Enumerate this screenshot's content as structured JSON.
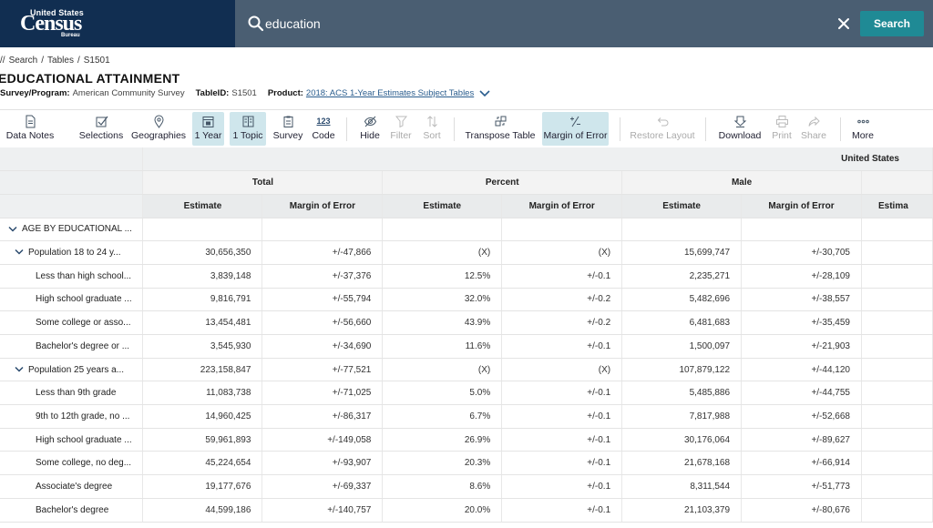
{
  "header": {
    "logo": {
      "line1": "United States",
      "line2": "Census",
      "line3": "Bureau"
    },
    "search_value": "education",
    "search_button": "Search",
    "colors": {
      "logo_bg": "#112e51",
      "search_bg": "#4a5e72",
      "search_button": "#1f8a95"
    },
    "icons": {
      "search": "search-icon",
      "clear": "close-icon"
    }
  },
  "breadcrumb": {
    "prefix": "//",
    "items": [
      "Search",
      "Tables",
      "S1501"
    ]
  },
  "title": "EDUCATIONAL ATTAINMENT",
  "meta": {
    "survey_label": "Survey/Program:",
    "survey_value": "American Community Survey",
    "tableid_label": "TableID:",
    "tableid_value": "S1501",
    "product_label": "Product:",
    "product_value": "2018: ACS 1-Year Estimates Subject Tables"
  },
  "toolbar": {
    "items": [
      {
        "label": "Data Notes",
        "icon": "document-icon"
      },
      {
        "label": "Selections",
        "icon": "checkbox-icon"
      },
      {
        "label": "Geographies",
        "icon": "map-pin-icon"
      },
      {
        "label": "1 Year",
        "icon": "calendar-icon",
        "active": true
      },
      {
        "label": "1 Topic",
        "icon": "book-icon",
        "active": true
      },
      {
        "label": "Survey",
        "icon": "clipboard-icon"
      },
      {
        "label": "Code",
        "icon": "123",
        "text_icon": "123"
      },
      {
        "label": "Hide",
        "icon": "eye-slash-icon"
      },
      {
        "label": "Filter",
        "icon": "filter-icon",
        "disabled": true
      },
      {
        "label": "Sort",
        "icon": "sort-icon",
        "disabled": true
      },
      {
        "label": "Transpose Table",
        "icon": "transpose-icon"
      },
      {
        "label": "Margin of Error",
        "icon": "plus-minus-icon",
        "active": true
      },
      {
        "label": "Restore Layout",
        "icon": "undo-icon",
        "disabled": true
      },
      {
        "label": "Download",
        "icon": "download-icon"
      },
      {
        "label": "Print",
        "icon": "print-icon",
        "disabled": true
      },
      {
        "label": "Share",
        "icon": "share-icon",
        "disabled": true
      },
      {
        "label": "More",
        "icon": "more-icon"
      }
    ]
  },
  "table": {
    "geo_header": "United States",
    "groups": [
      "Total",
      "Percent",
      "Male"
    ],
    "sub_headers": [
      "Estimate",
      "Margin of Error",
      "Estimate",
      "Margin of Error",
      "Estimate",
      "Margin of Error",
      "Estima"
    ],
    "rows": [
      {
        "label": "AGE BY EDUCATIONAL ...",
        "level": 0,
        "expandable": true,
        "cells": [
          "",
          "",
          "",
          "",
          "",
          ""
        ]
      },
      {
        "label": "Population 18 to 24 y...",
        "level": 1,
        "expandable": true,
        "cells": [
          "30,656,350",
          "+/-47,866",
          "(X)",
          "(X)",
          "15,699,747",
          "+/-30,705"
        ]
      },
      {
        "label": "Less than high school...",
        "level": 2,
        "cells": [
          "3,839,148",
          "+/-37,376",
          "12.5%",
          "+/-0.1",
          "2,235,271",
          "+/-28,109"
        ]
      },
      {
        "label": "High school graduate ...",
        "level": 2,
        "cells": [
          "9,816,791",
          "+/-55,794",
          "32.0%",
          "+/-0.2",
          "5,482,696",
          "+/-38,557"
        ]
      },
      {
        "label": "Some college or asso...",
        "level": 2,
        "cells": [
          "13,454,481",
          "+/-56,660",
          "43.9%",
          "+/-0.2",
          "6,481,683",
          "+/-35,459"
        ]
      },
      {
        "label": "Bachelor's degree or ...",
        "level": 2,
        "cells": [
          "3,545,930",
          "+/-34,690",
          "11.6%",
          "+/-0.1",
          "1,500,097",
          "+/-21,903"
        ]
      },
      {
        "label": "Population 25 years a...",
        "level": 1,
        "expandable": true,
        "cells": [
          "223,158,847",
          "+/-77,521",
          "(X)",
          "(X)",
          "107,879,122",
          "+/-44,120"
        ]
      },
      {
        "label": "Less than 9th grade",
        "level": 2,
        "cells": [
          "11,083,738",
          "+/-71,025",
          "5.0%",
          "+/-0.1",
          "5,485,886",
          "+/-44,755"
        ]
      },
      {
        "label": "9th to 12th grade, no ...",
        "level": 2,
        "cells": [
          "14,960,425",
          "+/-86,317",
          "6.7%",
          "+/-0.1",
          "7,817,988",
          "+/-52,668"
        ]
      },
      {
        "label": "High school graduate ...",
        "level": 2,
        "cells": [
          "59,961,893",
          "+/-149,058",
          "26.9%",
          "+/-0.1",
          "30,176,064",
          "+/-89,627"
        ]
      },
      {
        "label": "Some college, no deg...",
        "level": 2,
        "cells": [
          "45,224,654",
          "+/-93,907",
          "20.3%",
          "+/-0.1",
          "21,678,168",
          "+/-66,914"
        ]
      },
      {
        "label": "Associate's degree",
        "level": 2,
        "cells": [
          "19,177,676",
          "+/-69,337",
          "8.6%",
          "+/-0.1",
          "8,311,544",
          "+/-51,773"
        ]
      },
      {
        "label": "Bachelor's degree",
        "level": 2,
        "cells": [
          "44,599,186",
          "+/-140,757",
          "20.0%",
          "+/-0.1",
          "21,103,379",
          "+/-80,676"
        ]
      }
    ]
  }
}
